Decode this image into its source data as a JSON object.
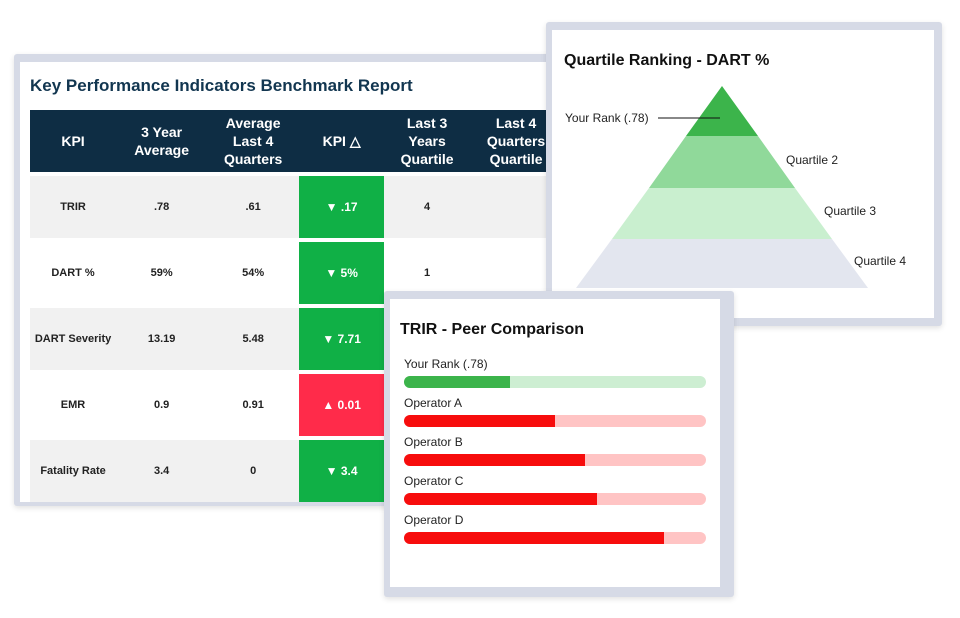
{
  "kpi_report": {
    "title": "Key Performance Indicators Benchmark Report",
    "columns": [
      "KPI",
      "3 Year Average",
      "Average Last 4 Quarters",
      "KPI △",
      "Last 3 Years Quartile",
      "Last 4 Quarters Quartile"
    ],
    "rows": [
      {
        "kpi": "TRIR",
        "avg3": ".78",
        "avg4q": ".61",
        "delta": "▼ .17",
        "trend": "good",
        "q3y": "4",
        "q4q": ""
      },
      {
        "kpi": "DART %",
        "avg3": "59%",
        "avg4q": "54%",
        "delta": "▼ 5%",
        "trend": "good",
        "q3y": "1",
        "q4q": ""
      },
      {
        "kpi": "DART Severity",
        "avg3": "13.19",
        "avg4q": "5.48",
        "delta": "▼ 7.71",
        "trend": "good",
        "q3y": "",
        "q4q": ""
      },
      {
        "kpi": "EMR",
        "avg3": "0.9",
        "avg4q": "0.91",
        "delta": "▲ 0.01",
        "trend": "bad",
        "q3y": "",
        "q4q": ""
      },
      {
        "kpi": "Fatality Rate",
        "avg3": "3.4",
        "avg4q": "0",
        "delta": "▼ 3.4",
        "trend": "good",
        "q3y": "",
        "q4q": ""
      }
    ]
  },
  "quartile_ranking": {
    "title": "Quartile Ranking - DART %",
    "rank_label": "Your Rank (.78)",
    "tiers": [
      {
        "label": "",
        "color": "#3cb44b"
      },
      {
        "label": "Quartile 2",
        "color": "#90d99a"
      },
      {
        "label": "Quartile 3",
        "color": "#c9efcf"
      },
      {
        "label": "Quartile 4",
        "color": "#e3e6ef"
      }
    ]
  },
  "peer_comparison": {
    "title": "TRIR -  Peer Comparison",
    "bars": [
      {
        "label": "Your Rank (.78)",
        "fill": 0.35,
        "color": "#3cb44b",
        "track": "#cdeed2"
      },
      {
        "label": "Operator A",
        "fill": 0.5,
        "color": "#f70d0d",
        "track": "#ffc4c4"
      },
      {
        "label": "Operator B",
        "fill": 0.6,
        "color": "#f70d0d",
        "track": "#ffc4c4"
      },
      {
        "label": "Operator C",
        "fill": 0.64,
        "color": "#f70d0d",
        "track": "#ffc4c4"
      },
      {
        "label": "Operator D",
        "fill": 0.86,
        "color": "#f70d0d",
        "track": "#ffc4c4"
      }
    ]
  }
}
